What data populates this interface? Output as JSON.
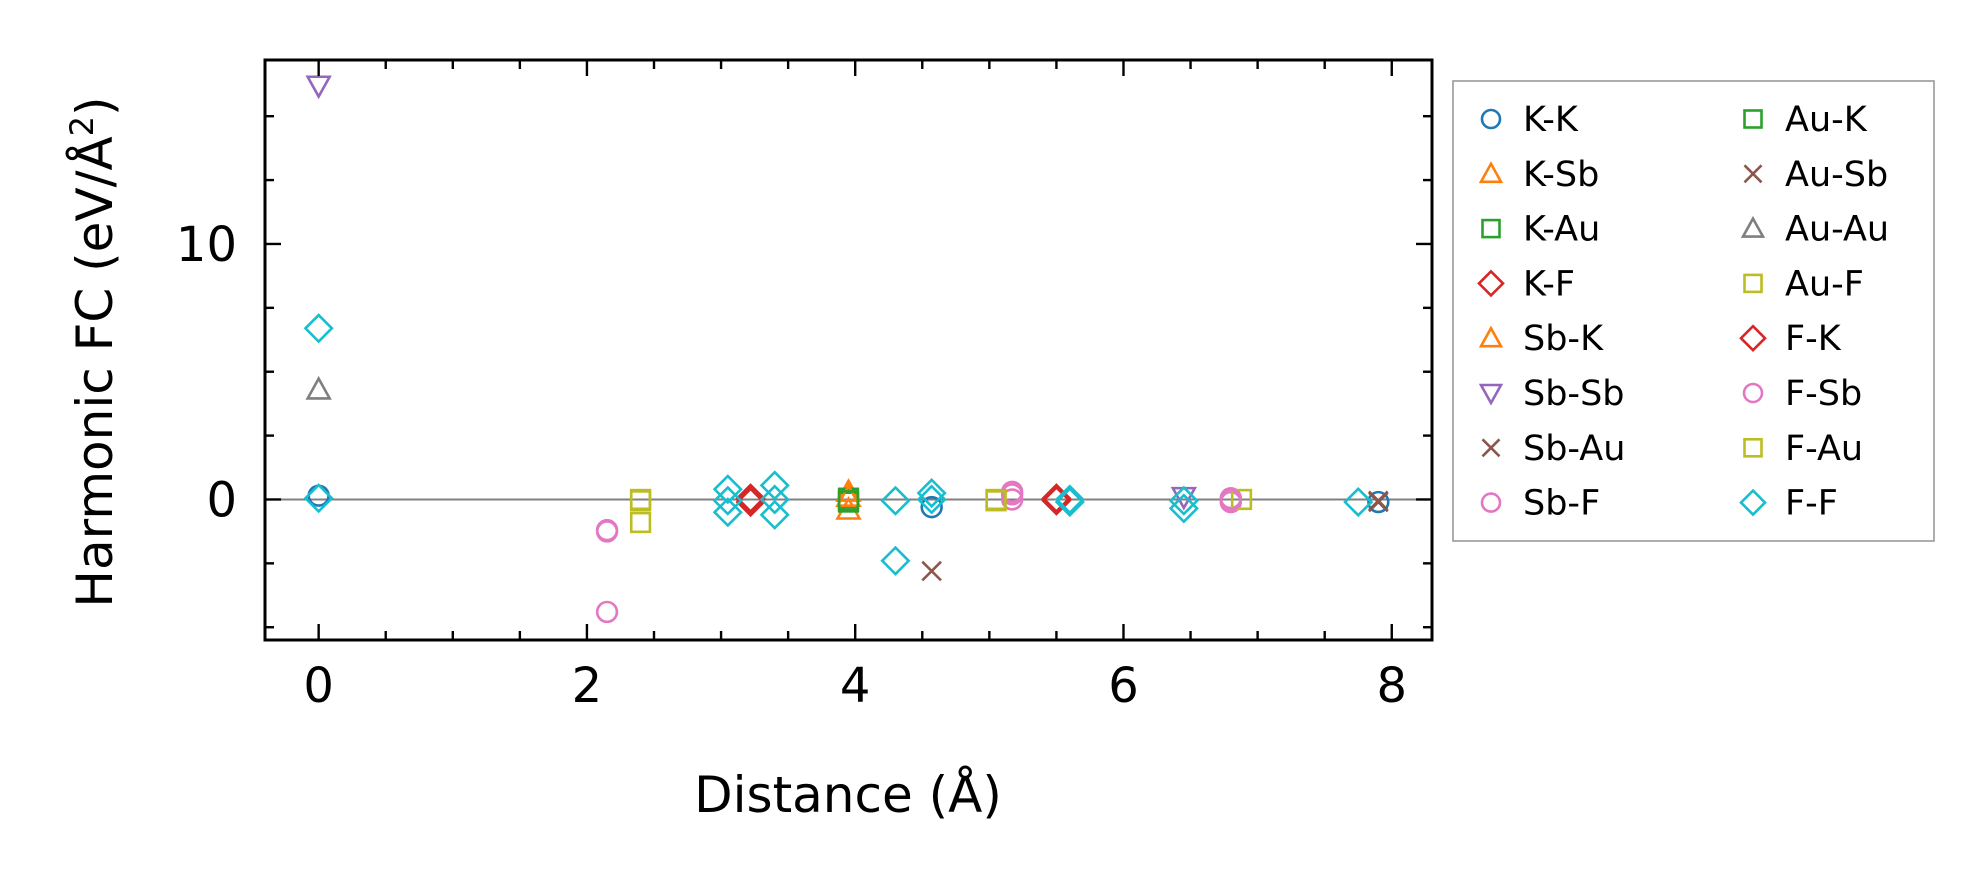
{
  "chart_data": {
    "type": "scatter",
    "title": "",
    "xlabel": "Distance (Å)",
    "ylabel_main": "Harmonic FC (eV/Å",
    "ylabel_sup": "2",
    "ylabel_close": ")",
    "xlim": [
      -0.4,
      8.3
    ],
    "ylim": [
      -5.5,
      17.2
    ],
    "xticks": [
      0,
      2,
      4,
      6,
      8
    ],
    "xtick_labels": [
      "0",
      "2",
      "4",
      "6",
      "8"
    ],
    "yticks": [
      0,
      10
    ],
    "ytick_labels": [
      "0",
      "10"
    ],
    "zero_line": true,
    "grid": false,
    "legend_position": "outside-right",
    "series": [
      {
        "name": "K-K",
        "marker": "circle",
        "color": "#1f77b4",
        "points": [
          [
            0,
            0.15
          ],
          [
            4.57,
            -0.3
          ],
          [
            7.9,
            -0.1
          ]
        ]
      },
      {
        "name": "K-Sb",
        "marker": "triangle-up",
        "color": "#ff7f0e",
        "points": [
          [
            3.95,
            0.3
          ],
          [
            3.95,
            -0.4
          ]
        ]
      },
      {
        "name": "K-Au",
        "marker": "square",
        "color": "#2ca02c",
        "points": [
          [
            3.95,
            0.05
          ],
          [
            3.95,
            -0.1
          ]
        ]
      },
      {
        "name": "K-F",
        "marker": "diamond",
        "color": "#d62728",
        "points": [
          [
            3.22,
            0.05
          ],
          [
            3.22,
            -0.1
          ],
          [
            5.5,
            0.05
          ],
          [
            5.5,
            -0.05
          ]
        ]
      },
      {
        "name": "Sb-K",
        "marker": "triangle-up",
        "color": "#ff7f0e",
        "points": [
          [
            3.95,
            0.1
          ]
        ]
      },
      {
        "name": "Sb-Sb",
        "marker": "triangle-down",
        "color": "#9467bd",
        "points": [
          [
            0,
            16.2
          ],
          [
            6.45,
            0.1
          ]
        ]
      },
      {
        "name": "Sb-Au",
        "marker": "x",
        "color": "#8c564b",
        "points": [
          [
            4.57,
            -2.8
          ],
          [
            7.9,
            -0.1
          ]
        ]
      },
      {
        "name": "Sb-F",
        "marker": "circle",
        "color": "#e377c2",
        "points": [
          [
            2.15,
            -1.2
          ],
          [
            2.15,
            -4.4
          ],
          [
            5.17,
            0.3
          ],
          [
            5.17,
            0.0
          ],
          [
            6.8,
            0.05
          ],
          [
            6.8,
            -0.1
          ]
        ]
      },
      {
        "name": "Au-K",
        "marker": "square",
        "color": "#2ca02c",
        "points": [
          [
            3.95,
            -0.05
          ]
        ]
      },
      {
        "name": "Au-Sb",
        "marker": "x",
        "color": "#8c564b",
        "points": [
          [
            7.9,
            -0.05
          ]
        ]
      },
      {
        "name": "Au-Au",
        "marker": "triangle-up",
        "color": "#7f7f7f",
        "points": [
          [
            0,
            4.3
          ]
        ]
      },
      {
        "name": "Au-F",
        "marker": "square",
        "color": "#bcbd22",
        "points": [
          [
            2.4,
            0.0
          ],
          [
            2.4,
            -0.9
          ],
          [
            5.05,
            0.0
          ],
          [
            6.88,
            0.0
          ]
        ]
      },
      {
        "name": "F-K",
        "marker": "diamond",
        "color": "#d62728",
        "points": [
          [
            3.22,
            0.0
          ],
          [
            5.5,
            0.0
          ]
        ]
      },
      {
        "name": "F-Sb",
        "marker": "circle",
        "color": "#e377c2",
        "points": [
          [
            2.15,
            -1.25
          ],
          [
            5.17,
            0.2
          ],
          [
            6.8,
            0.0
          ]
        ]
      },
      {
        "name": "F-Au",
        "marker": "square",
        "color": "#bcbd22",
        "points": [
          [
            2.4,
            -0.05
          ],
          [
            5.05,
            -0.05
          ]
        ]
      },
      {
        "name": "F-F",
        "marker": "diamond",
        "color": "#17becf",
        "points": [
          [
            0,
            6.7
          ],
          [
            0,
            0.05
          ],
          [
            3.05,
            0.4
          ],
          [
            3.05,
            -0.05
          ],
          [
            3.05,
            -0.5
          ],
          [
            3.4,
            0.55
          ],
          [
            3.4,
            0.0
          ],
          [
            3.4,
            -0.6
          ],
          [
            4.3,
            -2.4
          ],
          [
            4.3,
            -0.05
          ],
          [
            4.57,
            0.25
          ],
          [
            4.57,
            0.0
          ],
          [
            5.6,
            0.0
          ],
          [
            5.6,
            -0.1
          ],
          [
            6.45,
            -0.05
          ],
          [
            6.45,
            -0.35
          ],
          [
            7.75,
            -0.1
          ]
        ]
      }
    ]
  }
}
